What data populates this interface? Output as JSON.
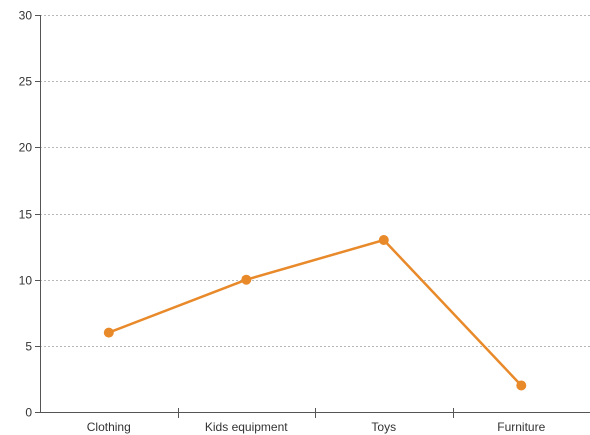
{
  "chart_data": {
    "type": "line",
    "title": "",
    "xlabel": "",
    "ylabel": "",
    "categories": [
      "Clothing",
      "Kids equipment",
      "Toys",
      "Furniture"
    ],
    "series": [
      {
        "values": [
          6,
          10,
          13,
          2
        ],
        "color": "#e8892a"
      }
    ],
    "ylim": [
      0,
      30
    ],
    "yticks": [
      0,
      5,
      10,
      15,
      20,
      25,
      30
    ],
    "grid": true,
    "grid_style": "dashed-horizontal",
    "legend": "none"
  }
}
